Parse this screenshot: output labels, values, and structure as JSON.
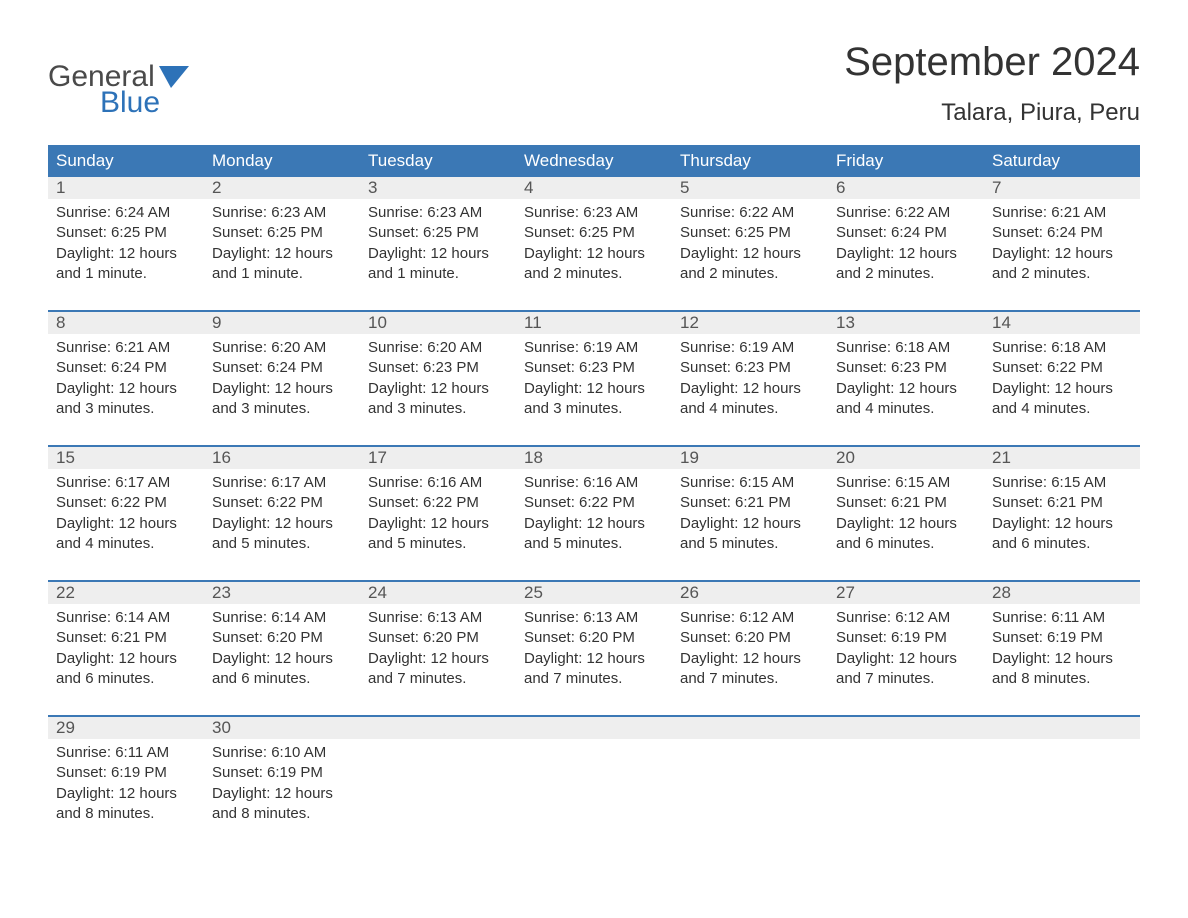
{
  "logo": {
    "text_gray": "General",
    "text_blue": "Blue",
    "gray_color": "#4a4a4a",
    "blue_color": "#2d72b8"
  },
  "header": {
    "title": "September 2024",
    "location": "Talara, Piura, Peru"
  },
  "calendar": {
    "type": "table",
    "header_bg": "#3b78b5",
    "header_text_color": "#ffffff",
    "daynum_bg": "#eeeeee",
    "daynum_border_top": "#3b78b5",
    "body_text_color": "#333333",
    "background_color": "#ffffff",
    "columns": [
      "Sunday",
      "Monday",
      "Tuesday",
      "Wednesday",
      "Thursday",
      "Friday",
      "Saturday"
    ],
    "font_family": "Arial",
    "header_fontsize": 17,
    "daynum_fontsize": 17,
    "content_fontsize": 15,
    "weeks": [
      {
        "days": [
          {
            "num": "1",
            "sunrise": "Sunrise: 6:24 AM",
            "sunset": "Sunset: 6:25 PM",
            "daylight1": "Daylight: 12 hours",
            "daylight2": "and 1 minute."
          },
          {
            "num": "2",
            "sunrise": "Sunrise: 6:23 AM",
            "sunset": "Sunset: 6:25 PM",
            "daylight1": "Daylight: 12 hours",
            "daylight2": "and 1 minute."
          },
          {
            "num": "3",
            "sunrise": "Sunrise: 6:23 AM",
            "sunset": "Sunset: 6:25 PM",
            "daylight1": "Daylight: 12 hours",
            "daylight2": "and 1 minute."
          },
          {
            "num": "4",
            "sunrise": "Sunrise: 6:23 AM",
            "sunset": "Sunset: 6:25 PM",
            "daylight1": "Daylight: 12 hours",
            "daylight2": "and 2 minutes."
          },
          {
            "num": "5",
            "sunrise": "Sunrise: 6:22 AM",
            "sunset": "Sunset: 6:25 PM",
            "daylight1": "Daylight: 12 hours",
            "daylight2": "and 2 minutes."
          },
          {
            "num": "6",
            "sunrise": "Sunrise: 6:22 AM",
            "sunset": "Sunset: 6:24 PM",
            "daylight1": "Daylight: 12 hours",
            "daylight2": "and 2 minutes."
          },
          {
            "num": "7",
            "sunrise": "Sunrise: 6:21 AM",
            "sunset": "Sunset: 6:24 PM",
            "daylight1": "Daylight: 12 hours",
            "daylight2": "and 2 minutes."
          }
        ]
      },
      {
        "days": [
          {
            "num": "8",
            "sunrise": "Sunrise: 6:21 AM",
            "sunset": "Sunset: 6:24 PM",
            "daylight1": "Daylight: 12 hours",
            "daylight2": "and 3 minutes."
          },
          {
            "num": "9",
            "sunrise": "Sunrise: 6:20 AM",
            "sunset": "Sunset: 6:24 PM",
            "daylight1": "Daylight: 12 hours",
            "daylight2": "and 3 minutes."
          },
          {
            "num": "10",
            "sunrise": "Sunrise: 6:20 AM",
            "sunset": "Sunset: 6:23 PM",
            "daylight1": "Daylight: 12 hours",
            "daylight2": "and 3 minutes."
          },
          {
            "num": "11",
            "sunrise": "Sunrise: 6:19 AM",
            "sunset": "Sunset: 6:23 PM",
            "daylight1": "Daylight: 12 hours",
            "daylight2": "and 3 minutes."
          },
          {
            "num": "12",
            "sunrise": "Sunrise: 6:19 AM",
            "sunset": "Sunset: 6:23 PM",
            "daylight1": "Daylight: 12 hours",
            "daylight2": "and 4 minutes."
          },
          {
            "num": "13",
            "sunrise": "Sunrise: 6:18 AM",
            "sunset": "Sunset: 6:23 PM",
            "daylight1": "Daylight: 12 hours",
            "daylight2": "and 4 minutes."
          },
          {
            "num": "14",
            "sunrise": "Sunrise: 6:18 AM",
            "sunset": "Sunset: 6:22 PM",
            "daylight1": "Daylight: 12 hours",
            "daylight2": "and 4 minutes."
          }
        ]
      },
      {
        "days": [
          {
            "num": "15",
            "sunrise": "Sunrise: 6:17 AM",
            "sunset": "Sunset: 6:22 PM",
            "daylight1": "Daylight: 12 hours",
            "daylight2": "and 4 minutes."
          },
          {
            "num": "16",
            "sunrise": "Sunrise: 6:17 AM",
            "sunset": "Sunset: 6:22 PM",
            "daylight1": "Daylight: 12 hours",
            "daylight2": "and 5 minutes."
          },
          {
            "num": "17",
            "sunrise": "Sunrise: 6:16 AM",
            "sunset": "Sunset: 6:22 PM",
            "daylight1": "Daylight: 12 hours",
            "daylight2": "and 5 minutes."
          },
          {
            "num": "18",
            "sunrise": "Sunrise: 6:16 AM",
            "sunset": "Sunset: 6:22 PM",
            "daylight1": "Daylight: 12 hours",
            "daylight2": "and 5 minutes."
          },
          {
            "num": "19",
            "sunrise": "Sunrise: 6:15 AM",
            "sunset": "Sunset: 6:21 PM",
            "daylight1": "Daylight: 12 hours",
            "daylight2": "and 5 minutes."
          },
          {
            "num": "20",
            "sunrise": "Sunrise: 6:15 AM",
            "sunset": "Sunset: 6:21 PM",
            "daylight1": "Daylight: 12 hours",
            "daylight2": "and 6 minutes."
          },
          {
            "num": "21",
            "sunrise": "Sunrise: 6:15 AM",
            "sunset": "Sunset: 6:21 PM",
            "daylight1": "Daylight: 12 hours",
            "daylight2": "and 6 minutes."
          }
        ]
      },
      {
        "days": [
          {
            "num": "22",
            "sunrise": "Sunrise: 6:14 AM",
            "sunset": "Sunset: 6:21 PM",
            "daylight1": "Daylight: 12 hours",
            "daylight2": "and 6 minutes."
          },
          {
            "num": "23",
            "sunrise": "Sunrise: 6:14 AM",
            "sunset": "Sunset: 6:20 PM",
            "daylight1": "Daylight: 12 hours",
            "daylight2": "and 6 minutes."
          },
          {
            "num": "24",
            "sunrise": "Sunrise: 6:13 AM",
            "sunset": "Sunset: 6:20 PM",
            "daylight1": "Daylight: 12 hours",
            "daylight2": "and 7 minutes."
          },
          {
            "num": "25",
            "sunrise": "Sunrise: 6:13 AM",
            "sunset": "Sunset: 6:20 PM",
            "daylight1": "Daylight: 12 hours",
            "daylight2": "and 7 minutes."
          },
          {
            "num": "26",
            "sunrise": "Sunrise: 6:12 AM",
            "sunset": "Sunset: 6:20 PM",
            "daylight1": "Daylight: 12 hours",
            "daylight2": "and 7 minutes."
          },
          {
            "num": "27",
            "sunrise": "Sunrise: 6:12 AM",
            "sunset": "Sunset: 6:19 PM",
            "daylight1": "Daylight: 12 hours",
            "daylight2": "and 7 minutes."
          },
          {
            "num": "28",
            "sunrise": "Sunrise: 6:11 AM",
            "sunset": "Sunset: 6:19 PM",
            "daylight1": "Daylight: 12 hours",
            "daylight2": "and 8 minutes."
          }
        ]
      },
      {
        "days": [
          {
            "num": "29",
            "sunrise": "Sunrise: 6:11 AM",
            "sunset": "Sunset: 6:19 PM",
            "daylight1": "Daylight: 12 hours",
            "daylight2": "and 8 minutes."
          },
          {
            "num": "30",
            "sunrise": "Sunrise: 6:10 AM",
            "sunset": "Sunset: 6:19 PM",
            "daylight1": "Daylight: 12 hours",
            "daylight2": "and 8 minutes."
          },
          {
            "num": "",
            "sunrise": "",
            "sunset": "",
            "daylight1": "",
            "daylight2": ""
          },
          {
            "num": "",
            "sunrise": "",
            "sunset": "",
            "daylight1": "",
            "daylight2": ""
          },
          {
            "num": "",
            "sunrise": "",
            "sunset": "",
            "daylight1": "",
            "daylight2": ""
          },
          {
            "num": "",
            "sunrise": "",
            "sunset": "",
            "daylight1": "",
            "daylight2": ""
          },
          {
            "num": "",
            "sunrise": "",
            "sunset": "",
            "daylight1": "",
            "daylight2": ""
          }
        ]
      }
    ]
  }
}
